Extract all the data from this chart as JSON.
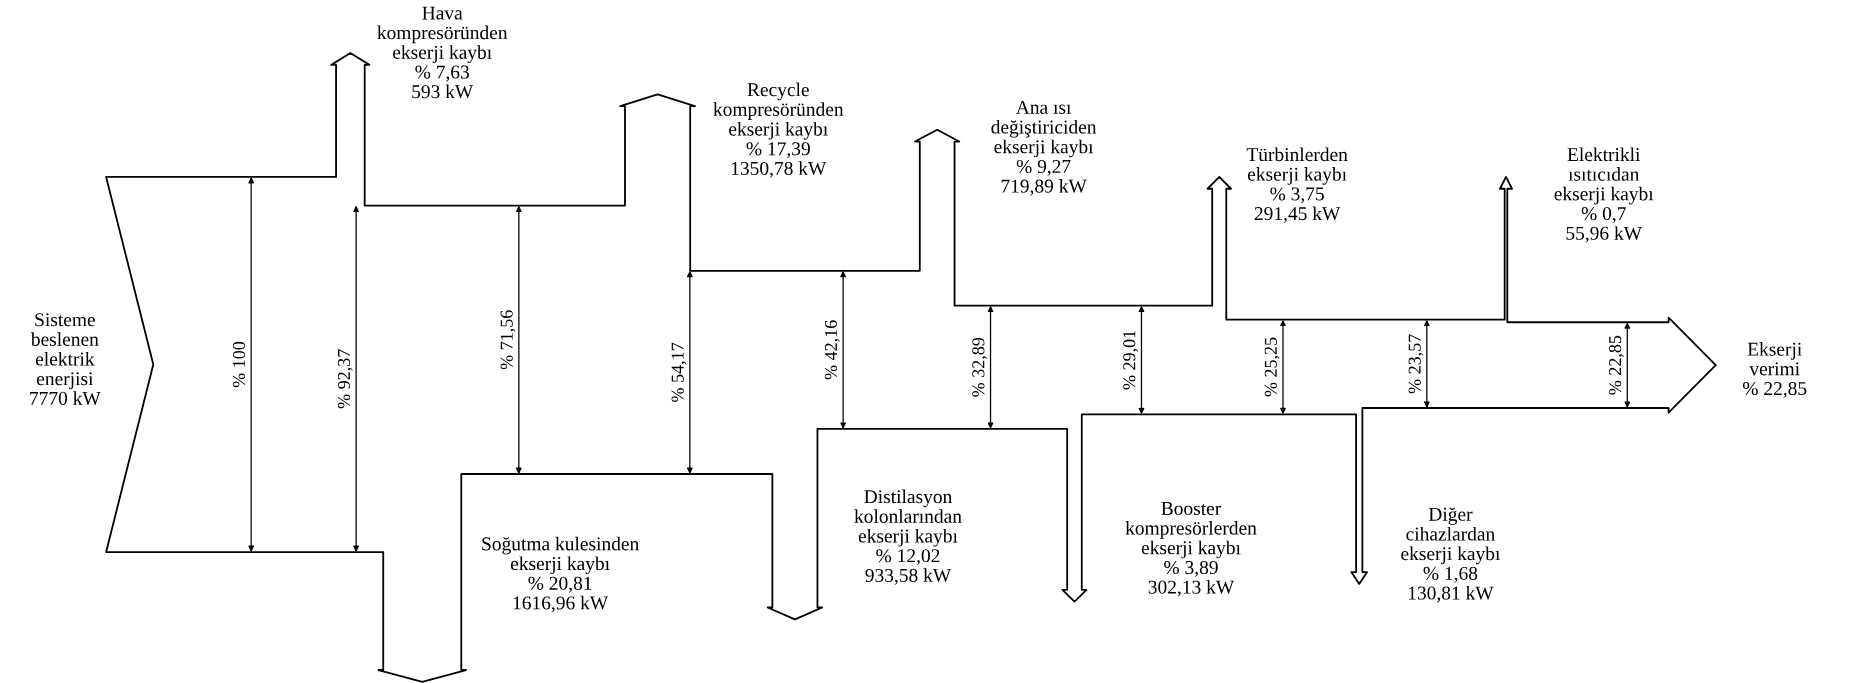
{
  "chart_data": {
    "type": "other",
    "categories": [
      "Hava\nkompresöründen\nekserji kaybı",
      "Soğutma kulesinden\nekserji kaybı",
      "Recycle\nkompresöründen\nekserji kaybı",
      "Distilasyon\nkolonlarından\nekserji kaybı",
      "Ana ısı\ndeğiştiriciden\nekserji kaybı",
      "Booster\nkompresörlerden\nekserji kaybı",
      "Türbinlerden\nekserji kaybı",
      "Diğer\ncihazlardan\nekserji kaybı",
      "Elektrikli\nısıtıcıdan\nekserji kaybı"
    ],
    "values": [
      7.63,
      20.81,
      17.39,
      12.02,
      9.27,
      3.89,
      3.75,
      1.68,
      0.7
    ],
    "value_labels": [
      "% 7,63\n593 kW",
      "% 20,81\n1616,96 kW",
      "% 17,39\n1350,78 kW",
      "% 12,02\n933,58 kW",
      "% 9,27\n719,89 kW",
      "% 3,89\n302,13 kW",
      "% 3,75\n291,45 kW",
      "% 1,68\n130,81 kW",
      "% 0,7\n55,96 kW"
    ],
    "annotations": [
      "Sisteme\nbeslenen\nelektrik\nenerjisi\n7770 kW",
      "Ekserji\nverimi\n% 22,85",
      "% 100",
      "% 92,37",
      "% 71,56",
      "% 54,17",
      "% 42,16",
      "% 32,89",
      "% 29,01",
      "% 25,25",
      "% 23,57",
      "% 22,85"
    ]
  }
}
